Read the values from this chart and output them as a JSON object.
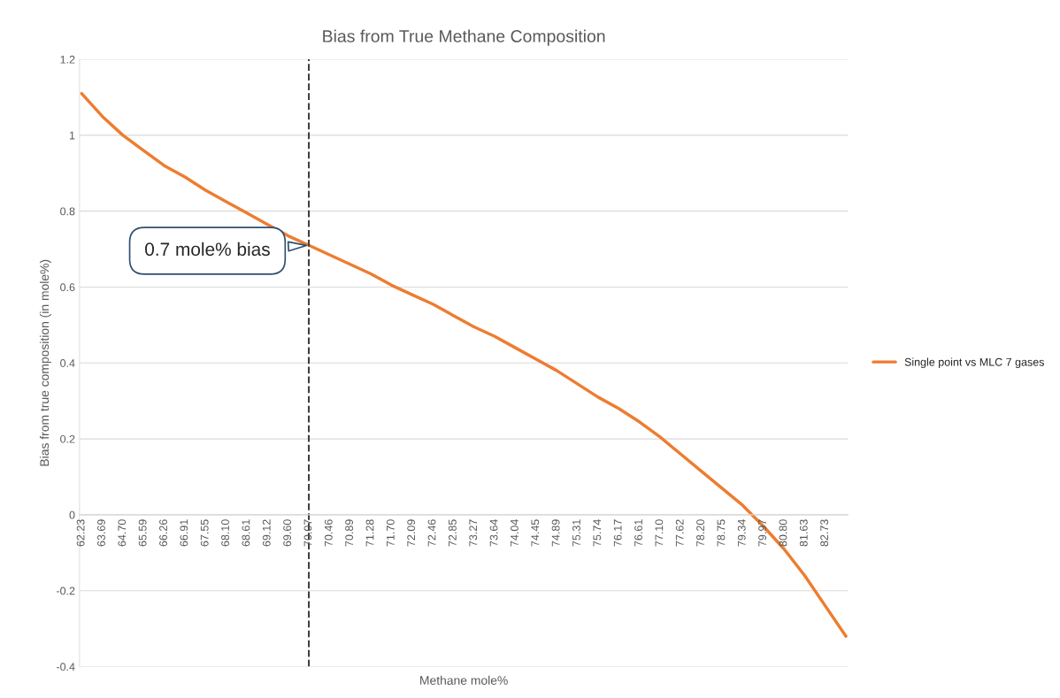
{
  "chart_data": {
    "type": "line",
    "title": "Bias from True Methane Composition",
    "xlabel": "Methane mole%",
    "ylabel": "Bias from true composition (in mole%)",
    "categories": [
      "62.23",
      "63.69",
      "64.70",
      "65.59",
      "66.26",
      "66.91",
      "67.55",
      "68.10",
      "68.61",
      "69.12",
      "69.60",
      "70.07",
      "70.46",
      "70.89",
      "71.28",
      "71.70",
      "72.09",
      "72.46",
      "72.85",
      "73.27",
      "73.64",
      "74.04",
      "74.45",
      "74.89",
      "75.31",
      "75.74",
      "76.17",
      "76.61",
      "77.10",
      "77.62",
      "78.20",
      "78.75",
      "79.34",
      "79.97",
      "80.80",
      "81.63",
      "82.73",
      null
    ],
    "series": [
      {
        "name": "Single point vs MLC 7 gases",
        "color": "#ed7d31",
        "values": [
          1.11,
          1.05,
          1.0,
          0.96,
          0.92,
          0.89,
          0.855,
          0.825,
          0.795,
          0.765,
          0.735,
          0.71,
          0.685,
          0.66,
          0.635,
          0.605,
          0.58,
          0.555,
          0.525,
          0.495,
          0.47,
          0.44,
          0.41,
          0.38,
          0.345,
          0.31,
          0.28,
          0.245,
          0.205,
          0.16,
          0.115,
          0.07,
          0.025,
          -0.03,
          -0.09,
          -0.16,
          -0.24,
          -0.32
        ]
      }
    ],
    "ylim": [
      -0.4,
      1.2
    ],
    "yticks": [
      -0.4,
      -0.2,
      0,
      0.2,
      0.4,
      0.6,
      0.8,
      1,
      1.2
    ],
    "grid": "y",
    "legend": "right",
    "marker": "none",
    "line_style": "solid",
    "ref_lines": [
      {
        "axis": "x",
        "value": "70.07",
        "color": "#404040",
        "line_style": "dashed"
      }
    ],
    "annotations": [
      {
        "text": "0.7 mole% bias",
        "x": "70.07",
        "y": 0.71
      }
    ]
  }
}
